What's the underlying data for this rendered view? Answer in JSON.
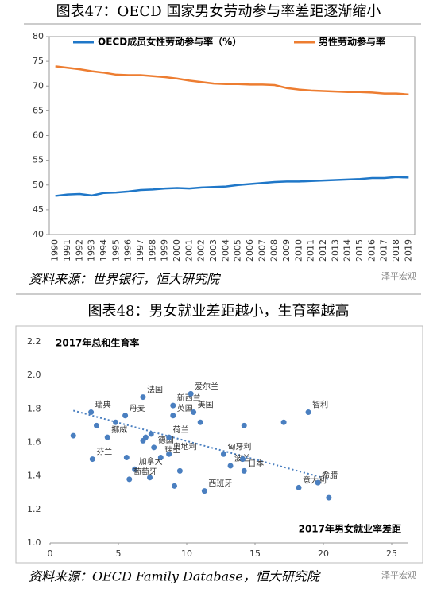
{
  "chart_data": [
    {
      "type": "line",
      "title": "图表47：OECD 国家男女劳动参与率差距逐渐缩小",
      "source": "资料来源：世界银行，恒大研究院",
      "categories": [
        "1990",
        "1991",
        "1992",
        "1993",
        "1994",
        "1995",
        "1996",
        "1997",
        "1998",
        "1999",
        "2000",
        "2001",
        "2002",
        "2003",
        "2004",
        "2005",
        "2006",
        "2007",
        "2008",
        "2009",
        "2010",
        "2011",
        "2012",
        "2013",
        "2014",
        "2015",
        "2016",
        "2017",
        "2018",
        "2019"
      ],
      "series": [
        {
          "name": "OECD成员女性劳动参与率（%）",
          "color": "#1f77c8",
          "values": [
            47.8,
            48.1,
            48.2,
            47.9,
            48.4,
            48.5,
            48.7,
            49.0,
            49.1,
            49.3,
            49.4,
            49.3,
            49.5,
            49.6,
            49.7,
            50.0,
            50.2,
            50.4,
            50.6,
            50.7,
            50.7,
            50.8,
            50.9,
            51.0,
            51.1,
            51.2,
            51.4,
            51.4,
            51.6,
            51.5
          ]
        },
        {
          "name": "男性劳动参与率",
          "color": "#ed7d31",
          "values": [
            74.0,
            73.7,
            73.4,
            73.0,
            72.7,
            72.3,
            72.2,
            72.2,
            72.0,
            71.8,
            71.5,
            71.1,
            70.8,
            70.5,
            70.4,
            70.4,
            70.3,
            70.3,
            70.2,
            69.6,
            69.3,
            69.1,
            69.0,
            68.9,
            68.8,
            68.8,
            68.7,
            68.5,
            68.5,
            68.3
          ]
        }
      ],
      "ylim": [
        40,
        80
      ],
      "yticks": [
        40,
        45,
        50,
        55,
        60,
        65,
        70,
        75,
        80
      ],
      "legend": "top"
    },
    {
      "type": "scatter",
      "title": "图表48：男女就业差距越小，生育率越高",
      "subtitle": "2017年总和生育率",
      "xlabel": "2017年男女就业率差距",
      "source": "资料来源：OECD Family Database，恒大研究院",
      "color": "#4a7fc0",
      "x": [
        1.7,
        3.0,
        3.4,
        4.2,
        3.1,
        4.8,
        5.5,
        6.8,
        5.6,
        6.2,
        5.8,
        6.8,
        7.0,
        7.3,
        7.4,
        7.6,
        8.1,
        8.7,
        9.0,
        9.0,
        8.7,
        9.1,
        9.5,
        10.3,
        10.5,
        11.0,
        11.3,
        12.7,
        13.2,
        14.1,
        14.2,
        14.2,
        17.1,
        18.9,
        18.2,
        19.6,
        20.4
      ],
      "y": [
        1.64,
        1.78,
        1.7,
        1.63,
        1.5,
        1.72,
        1.76,
        1.87,
        1.51,
        1.44,
        1.38,
        1.61,
        1.63,
        1.39,
        1.65,
        1.57,
        1.51,
        1.63,
        1.76,
        1.82,
        1.53,
        1.34,
        1.43,
        1.89,
        1.78,
        1.72,
        1.31,
        1.53,
        1.46,
        1.5,
        1.43,
        1.7,
        1.72,
        1.78,
        1.33,
        1.36,
        1.27
      ],
      "labels": [
        null,
        "瑞典",
        null,
        "挪威",
        "芬兰",
        null,
        "丹麦",
        "法国",
        null,
        "加拿大",
        "葡萄牙",
        null,
        null,
        null,
        null,
        "德国",
        "瑞士",
        "荷兰",
        "英国",
        "新西兰",
        "奥地利",
        null,
        null,
        "爱尔兰",
        "美国",
        null,
        "西班牙",
        "匈牙利",
        "波兰",
        null,
        "日本",
        null,
        null,
        "智利",
        "意大利",
        "希腊",
        null
      ],
      "trendline": {
        "x": [
          1.7,
          20.4
        ],
        "y": [
          1.79,
          1.38
        ]
      },
      "xlim": [
        0,
        25
      ],
      "xticks": [
        0,
        5,
        10,
        15,
        20,
        25
      ],
      "ylim": [
        1.0,
        2.2
      ],
      "yticks": [
        {
          "value": 1,
          "label": "1.0"
        },
        1.2,
        1.4,
        1.6,
        1.8,
        {
          "value": 2,
          "label": "2.0"
        },
        2.2
      ]
    }
  ],
  "watermark": "泽平宏观"
}
